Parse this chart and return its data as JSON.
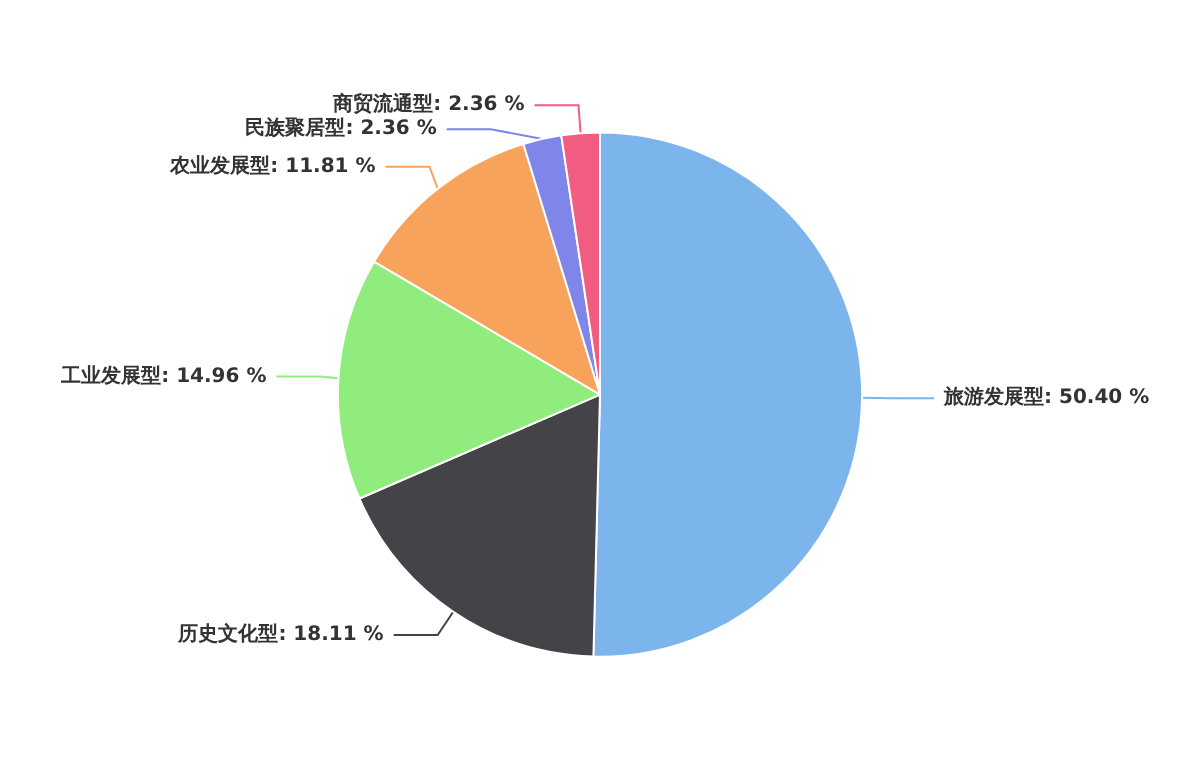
{
  "chart_data": {
    "type": "pie",
    "categories": [
      "旅游发展型",
      "历史文化型",
      "工业发展型",
      "农业发展型",
      "民族聚居型",
      "商贸流通型"
    ],
    "values": [
      50.4,
      18.11,
      14.96,
      11.81,
      2.36,
      2.36
    ],
    "colors": [
      "#7cb5ec",
      "#434348",
      "#90ed7d",
      "#f7a35c",
      "#8085e9",
      "#f15c80"
    ],
    "value_labels": [
      "50.40 %",
      "18.11 %",
      "14.96 %",
      "11.81 %",
      "2.36 %",
      "2.36 %"
    ],
    "legend": false
  }
}
